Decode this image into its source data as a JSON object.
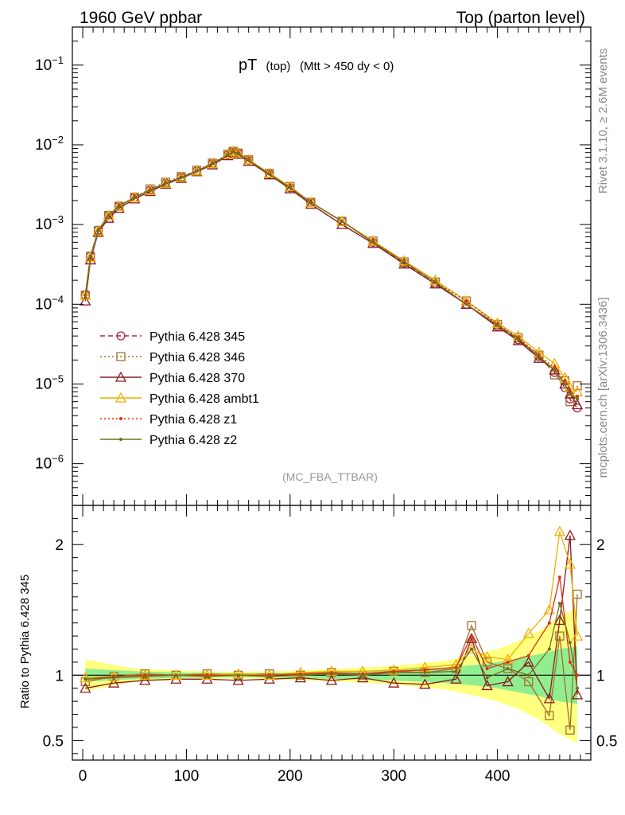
{
  "header": {
    "left": "1960 GeV ppbar",
    "right": "Top (parton level)"
  },
  "plot_title": {
    "main": "pT",
    "sub1": "(top)",
    "sub2": "(Mtt > 450 dy < 0)"
  },
  "side_labels": {
    "rivet": "Rivet 3.1.10, ≥ 2.6M events",
    "mcplots": "mcplots.cern.ch [arXiv:1306.3436]"
  },
  "analysis_tag": "(MC_FBA_TTBAR)",
  "chart_data": [
    {
      "type": "line",
      "panel": "main",
      "title": "pT (top) (Mtt > 450 dy < 0)",
      "xlabel": "",
      "ylabel": "",
      "xlim": [
        -10,
        490
      ],
      "ylim": [
        3e-07,
        0.3
      ],
      "yscale": "log",
      "xticks": [
        0,
        100,
        200,
        300,
        400
      ],
      "yticks": [
        {
          "value": 0.1,
          "label": "10^-1"
        },
        {
          "value": 0.01,
          "label": "10^-2"
        },
        {
          "value": 0.001,
          "label": "10^-3"
        },
        {
          "value": 0.0001,
          "label": "10^-4"
        },
        {
          "value": 1e-05,
          "label": "10^-5"
        },
        {
          "value": 1e-06,
          "label": "10^-6"
        }
      ],
      "legend_position": "middle-left",
      "series": [
        {
          "name": "Pythia 6.428 345",
          "color": "#b22244",
          "marker": "circle",
          "line": "dashed",
          "x": [
            2.5,
            7.5,
            15,
            25,
            35,
            50,
            65,
            80,
            95,
            110,
            125,
            140,
            145,
            150,
            160,
            180,
            200,
            220,
            250,
            280,
            310,
            340,
            370,
            400,
            420,
            440,
            455,
            465,
            470,
            477
          ],
          "y": [
            0.00013,
            0.0004,
            0.00085,
            0.0013,
            0.0017,
            0.0022,
            0.0027,
            0.0033,
            0.0039,
            0.0047,
            0.0058,
            0.0075,
            0.0082,
            0.0078,
            0.0064,
            0.0043,
            0.0029,
            0.0019,
            0.0011,
            0.0006,
            0.00033,
            0.00018,
            0.0001,
            5.3e-05,
            3.6e-05,
            2.2e-05,
            1.4e-05,
            9e-06,
            6.5e-06,
            5e-06
          ]
        },
        {
          "name": "Pythia 6.428 346",
          "color": "#a07030",
          "marker": "square",
          "line": "dotted",
          "x": [
            2.5,
            7.5,
            15,
            25,
            35,
            50,
            65,
            80,
            95,
            110,
            125,
            140,
            145,
            150,
            160,
            180,
            200,
            220,
            250,
            280,
            310,
            340,
            370,
            400,
            420,
            440,
            455,
            465,
            470,
            477
          ],
          "y": [
            0.00013,
            0.0004,
            0.00084,
            0.0013,
            0.0017,
            0.0022,
            0.0028,
            0.0034,
            0.004,
            0.0048,
            0.0059,
            0.0076,
            0.0083,
            0.0079,
            0.0065,
            0.0044,
            0.003,
            0.0019,
            0.0011,
            0.00062,
            0.00034,
            0.00019,
            0.00011,
            5.6e-05,
            3.8e-05,
            2.3e-05,
            1.3e-05,
            1.1e-05,
            6e-06,
            9.5e-06
          ]
        },
        {
          "name": "Pythia 6.428 370",
          "color": "#8b1a1a",
          "marker": "triangle",
          "line": "solid",
          "x": [
            2.5,
            7.5,
            15,
            25,
            35,
            50,
            65,
            80,
            95,
            110,
            125,
            140,
            145,
            150,
            160,
            180,
            200,
            220,
            250,
            280,
            310,
            340,
            370,
            400,
            420,
            440,
            455,
            465,
            470,
            477
          ],
          "y": [
            0.00011,
            0.00036,
            0.0008,
            0.0012,
            0.0016,
            0.0021,
            0.0026,
            0.0032,
            0.0038,
            0.0046,
            0.0056,
            0.0073,
            0.008,
            0.0076,
            0.0062,
            0.0042,
            0.0028,
            0.0018,
            0.001,
            0.00058,
            0.00032,
            0.00018,
            0.0001,
            5.2e-05,
            3.5e-05,
            2.1e-05,
            1.5e-05,
            1e-05,
            7.5e-06,
            5.5e-06
          ]
        },
        {
          "name": "Pythia 6.428 ambt1",
          "color": "#f0b000",
          "marker": "triangle",
          "line": "solid",
          "x": [
            2.5,
            7.5,
            15,
            25,
            35,
            50,
            65,
            80,
            95,
            110,
            125,
            140,
            145,
            150,
            160,
            180,
            200,
            220,
            250,
            280,
            310,
            340,
            370,
            400,
            420,
            440,
            455,
            465,
            470,
            477
          ],
          "y": [
            0.00013,
            0.00039,
            0.00083,
            0.0013,
            0.0017,
            0.0022,
            0.0027,
            0.0033,
            0.0039,
            0.0047,
            0.0058,
            0.0076,
            0.0083,
            0.0079,
            0.0065,
            0.0044,
            0.003,
            0.0019,
            0.0011,
            0.00062,
            0.00035,
            0.0002,
            0.00011,
            5.8e-05,
            4e-05,
            2.5e-05,
            1.8e-05,
            1.2e-05,
            9e-06,
            8e-06
          ]
        },
        {
          "name": "Pythia 6.428 z1",
          "color": "#e03010",
          "marker": "dot",
          "line": "dotted",
          "x": [
            2.5,
            7.5,
            15,
            25,
            35,
            50,
            65,
            80,
            95,
            110,
            125,
            140,
            145,
            150,
            160,
            180,
            200,
            220,
            250,
            280,
            310,
            340,
            370,
            400,
            420,
            440,
            455,
            465,
            470,
            477
          ],
          "y": [
            0.00013,
            0.0004,
            0.00084,
            0.0013,
            0.0017,
            0.0022,
            0.0027,
            0.0033,
            0.0039,
            0.0047,
            0.0058,
            0.0075,
            0.0082,
            0.0078,
            0.0064,
            0.0043,
            0.0029,
            0.0019,
            0.0011,
            0.00061,
            0.00034,
            0.00019,
            0.00011,
            5.6e-05,
            3.8e-05,
            2.3e-05,
            1.6e-05,
            1.1e-05,
            8e-06,
            7e-06
          ]
        },
        {
          "name": "Pythia 6.428 z2",
          "color": "#707020",
          "marker": "dot",
          "line": "solid",
          "x": [
            2.5,
            7.5,
            15,
            25,
            35,
            50,
            65,
            80,
            95,
            110,
            125,
            140,
            145,
            150,
            160,
            180,
            200,
            220,
            250,
            280,
            310,
            340,
            370,
            400,
            420,
            440,
            455,
            465,
            470,
            477
          ],
          "y": [
            0.00013,
            0.0004,
            0.00084,
            0.0013,
            0.0017,
            0.0022,
            0.0027,
            0.0033,
            0.0039,
            0.0047,
            0.0058,
            0.0075,
            0.0082,
            0.0078,
            0.0064,
            0.0043,
            0.0029,
            0.0019,
            0.0011,
            0.0006,
            0.00034,
            0.00019,
            0.0001,
            5.5e-05,
            3.7e-05,
            2.2e-05,
            1.5e-05,
            1e-05,
            7.5e-06,
            6.5e-06
          ]
        }
      ]
    },
    {
      "type": "line",
      "panel": "ratio",
      "title": "",
      "xlabel": "",
      "ylabel": "Ratio to Pythia 6.428 345",
      "xlim": [
        -10,
        490
      ],
      "ylim": [
        0.35,
        2.3
      ],
      "xticks": [
        0,
        100,
        200,
        300,
        400
      ],
      "yticks": [
        0.5,
        1,
        2
      ],
      "reference_line": 1,
      "band_inner": {
        "color": "#90ee90",
        "x": [
          2.5,
          50,
          100,
          150,
          200,
          250,
          300,
          350,
          380,
          400,
          420,
          440,
          460,
          477
        ],
        "lo": [
          0.95,
          0.97,
          0.98,
          0.985,
          0.98,
          0.97,
          0.96,
          0.94,
          0.92,
          0.9,
          0.87,
          0.84,
          0.8,
          0.78
        ],
        "hi": [
          1.05,
          1.03,
          1.02,
          1.015,
          1.02,
          1.03,
          1.04,
          1.06,
          1.08,
          1.1,
          1.13,
          1.16,
          1.2,
          1.22
        ]
      },
      "band_outer": {
        "color": "#ffff80",
        "x": [
          2.5,
          50,
          100,
          150,
          200,
          250,
          300,
          350,
          380,
          400,
          420,
          440,
          460,
          477
        ],
        "lo": [
          0.88,
          0.95,
          0.965,
          0.975,
          0.965,
          0.95,
          0.93,
          0.89,
          0.84,
          0.8,
          0.74,
          0.66,
          0.55,
          0.48
        ],
        "hi": [
          1.12,
          1.05,
          1.035,
          1.025,
          1.035,
          1.05,
          1.07,
          1.11,
          1.16,
          1.2,
          1.26,
          1.34,
          1.45,
          1.52
        ]
      },
      "series": [
        {
          "name": "Pythia 6.428 346",
          "color": "#a07030",
          "x": [
            2.5,
            30,
            60,
            90,
            120,
            150,
            180,
            210,
            240,
            270,
            300,
            330,
            360,
            375,
            390,
            410,
            430,
            450,
            460,
            470,
            477
          ],
          "y": [
            0.95,
            0.99,
            1.01,
            1.0,
            1.01,
            1.0,
            1.01,
            1.0,
            1.02,
            1.0,
            1.03,
            1.02,
            1.05,
            1.38,
            1.1,
            1.05,
            0.95,
            0.69,
            1.3,
            0.58,
            1.62
          ]
        },
        {
          "name": "Pythia 6.428 370",
          "color": "#8b1a1a",
          "x": [
            2.5,
            30,
            60,
            90,
            120,
            150,
            180,
            210,
            240,
            270,
            300,
            330,
            360,
            375,
            390,
            410,
            430,
            450,
            460,
            470,
            477
          ],
          "y": [
            0.9,
            0.94,
            0.96,
            0.97,
            0.97,
            0.96,
            0.97,
            0.98,
            0.96,
            0.98,
            0.94,
            0.93,
            0.97,
            1.28,
            0.92,
            0.95,
            1.1,
            0.82,
            1.42,
            2.07,
            0.85
          ]
        },
        {
          "name": "Pythia 6.428 ambt1",
          "color": "#f0b000",
          "x": [
            2.5,
            30,
            60,
            90,
            120,
            150,
            180,
            210,
            240,
            270,
            300,
            330,
            360,
            375,
            390,
            410,
            430,
            450,
            460,
            470,
            477
          ],
          "y": [
            0.98,
            0.99,
            1.0,
            1.0,
            1.0,
            1.01,
            1.0,
            1.02,
            1.03,
            1.03,
            1.04,
            1.06,
            1.08,
            1.2,
            1.14,
            1.12,
            1.32,
            1.5,
            2.1,
            1.85,
            1.3
          ]
        },
        {
          "name": "Pythia 6.428 z1",
          "color": "#e03010",
          "x": [
            2.5,
            30,
            60,
            90,
            120,
            150,
            180,
            210,
            240,
            270,
            300,
            330,
            360,
            375,
            390,
            410,
            430,
            450,
            460,
            470,
            477
          ],
          "y": [
            0.97,
            0.99,
            1.0,
            1.0,
            1.0,
            1.0,
            1.0,
            1.01,
            1.02,
            1.01,
            1.03,
            1.04,
            1.06,
            1.3,
            1.05,
            1.1,
            1.15,
            1.4,
            1.75,
            1.1,
            1.0
          ]
        },
        {
          "name": "Pythia 6.428 z2",
          "color": "#707020",
          "x": [
            2.5,
            30,
            60,
            90,
            120,
            150,
            180,
            210,
            240,
            270,
            300,
            330,
            360,
            375,
            390,
            410,
            430,
            450,
            460,
            470,
            477
          ],
          "y": [
            0.97,
            0.98,
            0.99,
            1.0,
            0.99,
            1.0,
            0.99,
            1.0,
            1.01,
            1.0,
            1.02,
            1.02,
            1.03,
            1.2,
            0.98,
            1.05,
            1.0,
            1.2,
            1.55,
            1.25,
            0.9
          ]
        }
      ]
    }
  ]
}
